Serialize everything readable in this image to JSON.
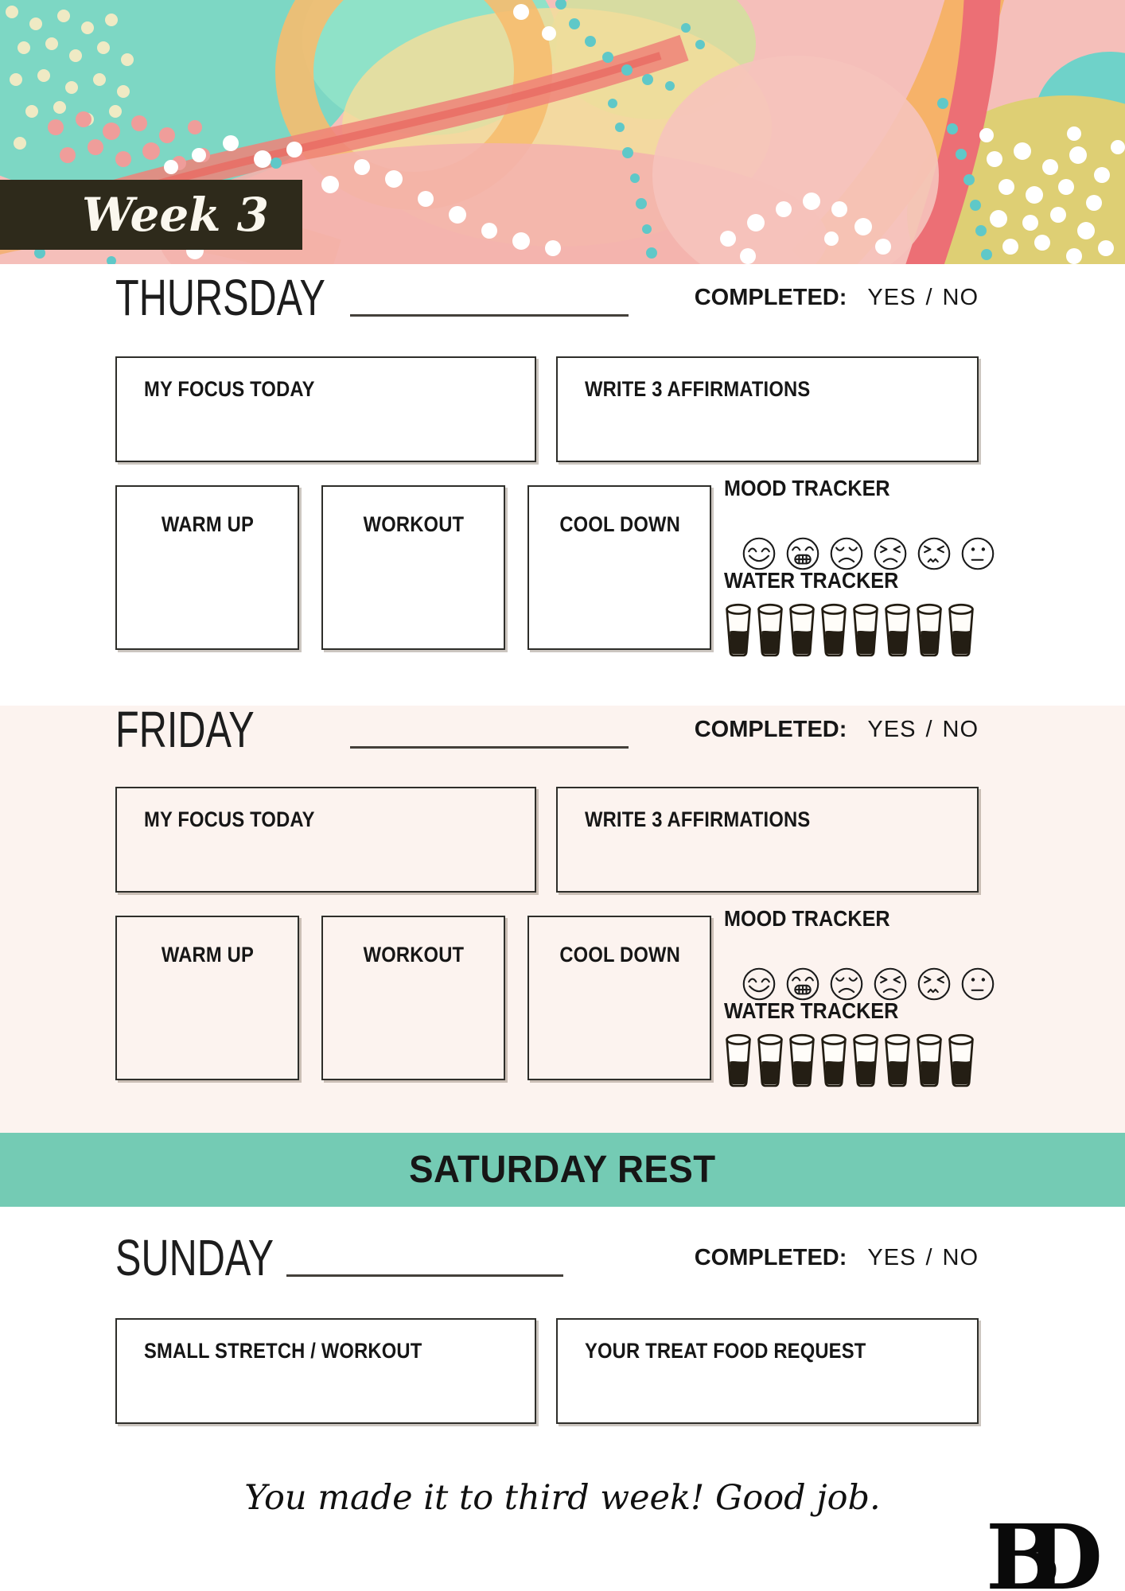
{
  "header": {
    "week_label": "Week 3"
  },
  "days": {
    "thursday": {
      "title": "THURSDAY",
      "completed_label": "COMPLETED:",
      "yes_label": "YES",
      "separator": "/",
      "no_label": "NO",
      "focus_label": "MY FOCUS TODAY",
      "affirmations_label": "WRITE 3 AFFIRMATIONS",
      "warmup_label": "WARM UP",
      "workout_label": "WORKOUT",
      "cooldown_label": "COOL DOWN",
      "mood_label": "MOOD TRACKER",
      "water_label": "WATER TRACKER"
    },
    "friday": {
      "title": "FRIDAY",
      "completed_label": "COMPLETED:",
      "yes_label": "YES",
      "separator": "/",
      "no_label": "NO",
      "focus_label": "MY FOCUS TODAY",
      "affirmations_label": "WRITE 3 AFFIRMATIONS",
      "warmup_label": "WARM UP",
      "workout_label": "WORKOUT",
      "cooldown_label": "COOL DOWN",
      "mood_label": "MOOD TRACKER",
      "water_label": "WATER TRACKER"
    }
  },
  "saturday": {
    "banner_label": "SATURDAY REST"
  },
  "sunday": {
    "title": "SUNDAY",
    "completed_label": "COMPLETED:",
    "yes_label": "YES",
    "separator": "/",
    "no_label": "NO",
    "stretch_label": "SMALL STRETCH / WORKOUT",
    "treat_label": "YOUR TREAT FOOD REQUEST"
  },
  "footer": {
    "message": "You made it to third week! Good job.",
    "logo_text": "BD"
  },
  "trackers": {
    "mood_icons": [
      "happy",
      "grinning",
      "sad",
      "confounded",
      "squeamish",
      "neutral"
    ],
    "water_glass_count": 8
  },
  "colors": {
    "accent_teal": "#74cbb4",
    "friday_bg": "#fcf3ef",
    "badge_bg": "#2e2a1b",
    "ink": "#161616"
  }
}
